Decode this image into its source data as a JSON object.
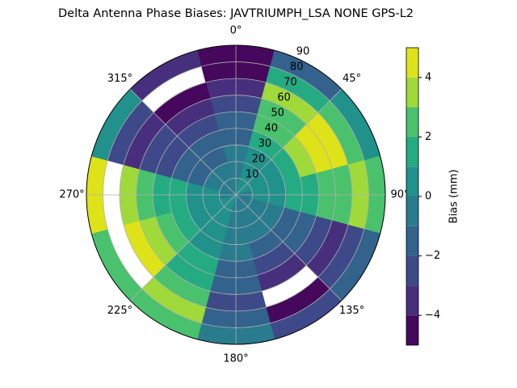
{
  "chart_data": {
    "type": "polar-contour",
    "title": "Delta Antenna Phase Biases: JAVTRIUMPH_LSA  NONE GPS-L2",
    "azimuths": [
      0,
      30,
      60,
      90,
      120,
      150,
      180,
      210,
      240,
      270,
      300,
      330
    ],
    "zeniths": [
      5,
      15,
      25,
      35,
      45,
      55,
      65,
      75,
      85
    ],
    "values": [
      [
        0,
        0,
        -0.5,
        -1,
        -1.5,
        -2,
        -3,
        -4,
        -4.5
      ],
      [
        0.2,
        0.5,
        1,
        1.5,
        2.5,
        3,
        3.5,
        2,
        -1
      ],
      [
        0.2,
        0.5,
        1,
        2,
        3.5,
        4.5,
        4.5,
        3,
        1
      ],
      [
        0,
        0.3,
        0.8,
        1.5,
        2,
        2.5,
        3,
        3.5,
        3
      ],
      [
        0,
        -0.3,
        -0.5,
        -1,
        -1.5,
        -2,
        -3,
        -2.5,
        -1
      ],
      [
        0,
        -0.3,
        -0.8,
        -1.5,
        -2.5,
        -3.5,
        null,
        -4,
        -2
      ],
      [
        0,
        0,
        -0.3,
        -0.5,
        -1,
        -1.5,
        -2,
        -1.5,
        0
      ],
      [
        0.2,
        0.3,
        0.5,
        1,
        1.5,
        2,
        3,
        3.5,
        2.5
      ],
      [
        0.2,
        0.5,
        1,
        1.5,
        2.5,
        3.5,
        4.5,
        null,
        3
      ],
      [
        0,
        0.3,
        0.8,
        1.5,
        2,
        3,
        4,
        null,
        4.5
      ],
      [
        -0.2,
        -0.5,
        -1,
        -1.5,
        -2,
        -2.5,
        -3,
        -2,
        1
      ],
      [
        -0.2,
        -0.5,
        -1,
        -1.5,
        -2.5,
        -3.5,
        -4.5,
        null,
        -3
      ]
    ],
    "rlim": [
      0,
      90
    ],
    "rticks": [
      10,
      20,
      30,
      40,
      50,
      60,
      70,
      80,
      90
    ],
    "thetaticks": [
      {
        "value": 0,
        "label": "0°"
      },
      {
        "value": 45,
        "label": "45°"
      },
      {
        "value": 90,
        "label": "90°"
      },
      {
        "value": 135,
        "label": "135°"
      },
      {
        "value": 180,
        "label": "180°"
      },
      {
        "value": 225,
        "label": "225°"
      },
      {
        "value": 270,
        "label": "270°"
      },
      {
        "value": 315,
        "label": "315°"
      }
    ],
    "grid": true,
    "levels": [
      -5,
      -4,
      -3,
      -2,
      -1,
      0,
      1,
      2,
      3,
      4,
      5
    ],
    "colors": [
      "#46085c",
      "#472f7d",
      "#3e4989",
      "#33628d",
      "#297b8e",
      "#21918c",
      "#25ab82",
      "#4ac16d",
      "#9fda3a",
      "#dde318"
    ],
    "clim": [
      -5,
      5
    ],
    "cticks": [
      {
        "value": -4,
        "label": "−4"
      },
      {
        "value": -2,
        "label": "−2"
      },
      0,
      2,
      4
    ],
    "colorbar_label": "Bias (mm)"
  }
}
